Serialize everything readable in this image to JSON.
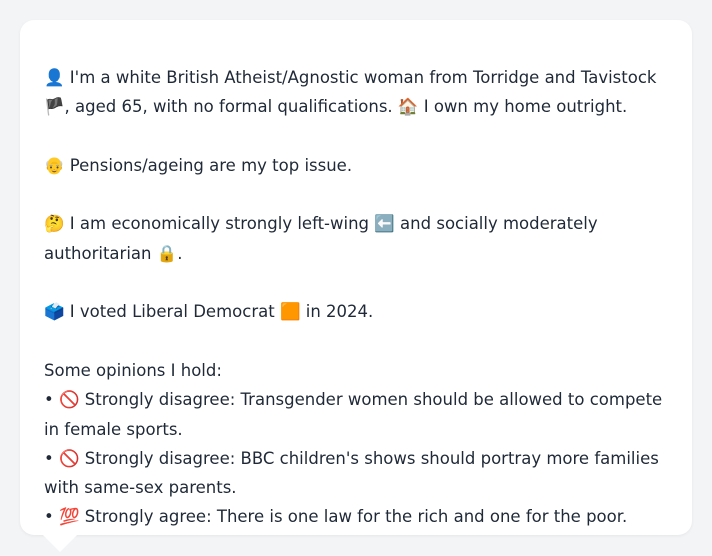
{
  "bio": {
    "identity_emoji": "👤",
    "identity_text_1": " I'm a white British Atheist/Agnostic woman from Torridge and Tavistock",
    "flag_emoji": "🏴",
    "identity_text_2": ", aged 65, with no formal qualifications. ",
    "home_emoji": "🏠",
    "home_text": " I own my home outright."
  },
  "issue": {
    "emoji": "👴",
    "text": " Pensions/ageing are my top issue."
  },
  "politics": {
    "emoji": "🤔",
    "text_1": " I am economically strongly left-wing ",
    "left_emoji": "⬅️",
    "text_2": " and socially moderately",
    "text_3": "authoritarian ",
    "lock_emoji": "🔒",
    "text_4": "."
  },
  "vote": {
    "emoji": "🗳️",
    "text_1": " I voted Liberal Democrat ",
    "party_emoji": "🟧",
    "text_2": " in 2024."
  },
  "opinions": {
    "heading": "Some opinions I hold:",
    "items": [
      {
        "bullet": "• ",
        "emoji": "🚫",
        "text_1": " Strongly disagree: Transgender women should be allowed to compete",
        "text_2": "in female sports."
      },
      {
        "bullet": "• ",
        "emoji": "🚫",
        "text_1": " Strongly disagree: BBC children's shows should portray more families",
        "text_2": "with same-sex parents."
      },
      {
        "bullet": "• ",
        "emoji": "💯",
        "text_1": " Strongly agree: There is one law for the rich and one for the poor.",
        "text_2": ""
      }
    ]
  }
}
